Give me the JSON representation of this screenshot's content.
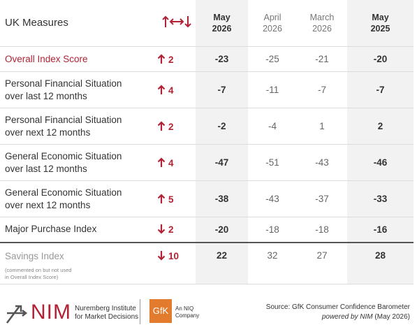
{
  "header": {
    "title": "UK Measures",
    "columns": [
      {
        "month": "May",
        "year": "2026"
      },
      {
        "month": "April",
        "year": "2026"
      },
      {
        "month": "March",
        "year": "2026"
      },
      {
        "month": "May",
        "year": "2025"
      }
    ]
  },
  "rows": [
    {
      "label": [
        "Overall Index Score"
      ],
      "change": 2,
      "direction": "up",
      "values": [
        -23,
        -25,
        -21,
        -20
      ]
    },
    {
      "label": [
        "Personal Financial Situation",
        "over last 12 months"
      ],
      "change": 4,
      "direction": "up",
      "values": [
        -7,
        -11,
        -7,
        -7
      ]
    },
    {
      "label": [
        "Personal Financial Situation",
        "over next 12 months"
      ],
      "change": 2,
      "direction": "up",
      "values": [
        -2,
        -4,
        1,
        2
      ]
    },
    {
      "label": [
        "General Economic Situation",
        "over last 12 months"
      ],
      "change": 4,
      "direction": "up",
      "values": [
        -47,
        -51,
        -43,
        -46
      ]
    },
    {
      "label": [
        "General Economic Situation",
        "over next 12 months"
      ],
      "change": 5,
      "direction": "up",
      "values": [
        -38,
        -43,
        -37,
        -33
      ]
    },
    {
      "label": [
        "Major Purchase Index"
      ],
      "change": 2,
      "direction": "down",
      "values": [
        -20,
        -18,
        -18,
        -16
      ]
    },
    {
      "label": [
        "Savings Index"
      ],
      "note": [
        "(commented on but not used",
        "in Overall Index Score)"
      ],
      "change": 10,
      "direction": "down",
      "values": [
        22,
        32,
        27,
        28
      ]
    }
  ],
  "footer": {
    "nim": "NIM",
    "nim_name": [
      "Nuremberg Institute",
      "for Market Decisions"
    ],
    "gfk": "GfK",
    "gfk_sub": [
      "An NIQ",
      "Company"
    ],
    "source": "Source: GfK Consumer Confidence Barometer",
    "powered": "powered by NIM",
    "powered_date": "(May 2026)"
  }
}
